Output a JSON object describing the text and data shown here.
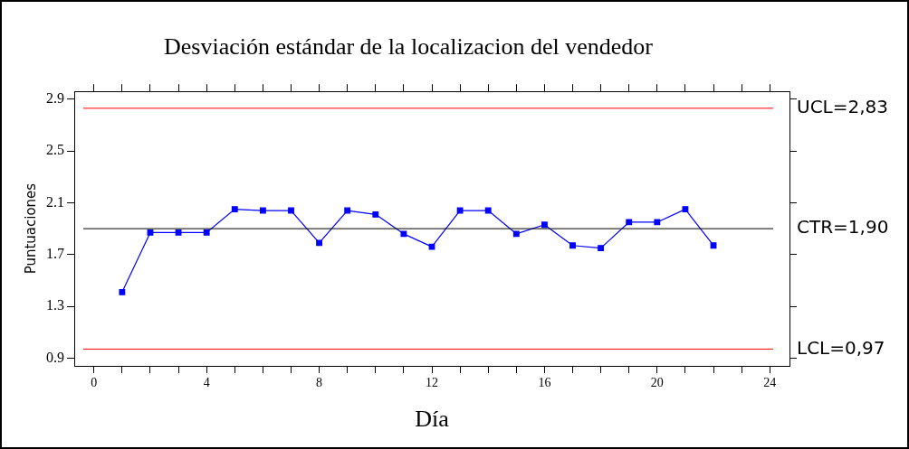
{
  "chart_data": {
    "type": "line",
    "title": "Desviación estándar de la localizacion del vendedor",
    "xlabel": "Día",
    "ylabel": "Puntuaciones",
    "x": [
      1,
      2,
      3,
      4,
      5,
      6,
      7,
      8,
      9,
      10,
      11,
      12,
      13,
      14,
      15,
      16,
      17,
      18,
      19,
      20,
      21,
      22
    ],
    "series": [
      {
        "color": "#0000ff",
        "values": [
          1.41,
          1.87,
          1.87,
          1.87,
          2.05,
          2.04,
          2.04,
          1.79,
          2.04,
          2.01,
          1.86,
          1.76,
          2.04,
          2.04,
          1.86,
          1.93,
          1.77,
          1.75,
          1.95,
          1.95,
          2.05,
          1.77
        ]
      }
    ],
    "xlim": [
      -0.7,
      24.7
    ],
    "ylim": [
      0.84,
      2.96
    ],
    "xticks": [
      0,
      {
        "value": 1,
        "label": null
      },
      {
        "value": 2,
        "label": null
      },
      {
        "value": 3,
        "label": null
      },
      4,
      {
        "value": 5,
        "label": null
      },
      {
        "value": 6,
        "label": null
      },
      {
        "value": 7,
        "label": null
      },
      8,
      {
        "value": 9,
        "label": null
      },
      {
        "value": 10,
        "label": null
      },
      {
        "value": 11,
        "label": null
      },
      12,
      {
        "value": 13,
        "label": null
      },
      {
        "value": 14,
        "label": null
      },
      {
        "value": 15,
        "label": null
      },
      16,
      {
        "value": 17,
        "label": null
      },
      {
        "value": 18,
        "label": null
      },
      {
        "value": 19,
        "label": null
      },
      20,
      {
        "value": 21,
        "label": null
      },
      {
        "value": 22,
        "label": null
      },
      {
        "value": 23,
        "label": null
      },
      24
    ],
    "yticks": [
      0.9,
      1.3,
      1.7,
      2.1,
      2.5,
      2.9
    ],
    "ref_lines": [
      {
        "axis": "y",
        "value": 2.83,
        "label": "UCL=2,83",
        "color": "#ff0000"
      },
      {
        "axis": "y",
        "value": 1.9,
        "label": "CTR=1,90",
        "color": "#000000"
      },
      {
        "axis": "y",
        "value": 0.97,
        "label": "LCL=0,97",
        "color": "#ff0000"
      }
    ],
    "grid": false,
    "legend": false,
    "marker": "square",
    "line_style": "solid"
  }
}
